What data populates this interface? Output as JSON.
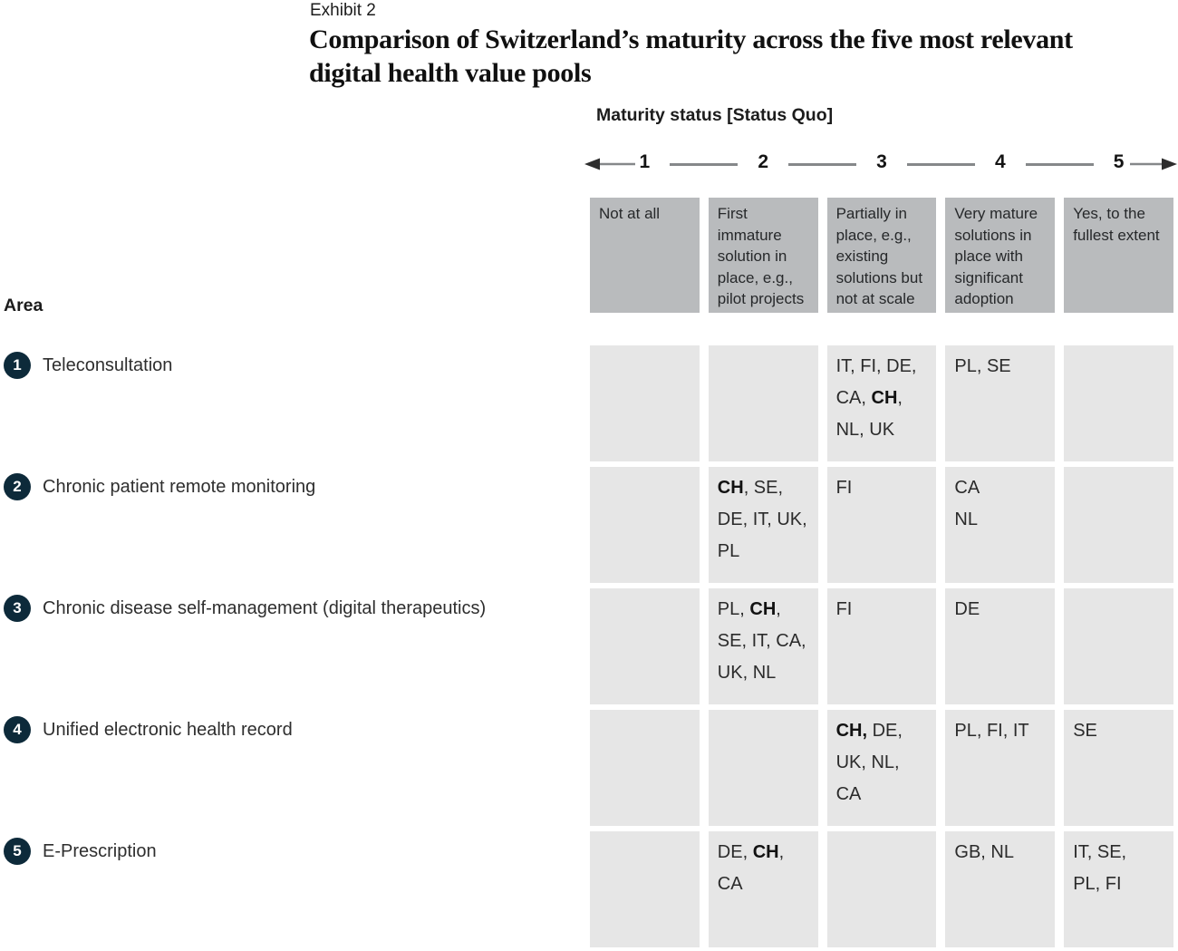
{
  "header": {
    "exhibit_label": "Exhibit 2",
    "title_lines": [
      "Comparison of Switzerland’s maturity across the five most relevant",
      "digital health value pools"
    ]
  },
  "matrix": {
    "axis_title": "Maturity status [Status Quo]",
    "scale_numbers": [
      "1",
      "2",
      "3",
      "4",
      "5"
    ],
    "column_headers": [
      "Not at all",
      "First immature solution in place, e.g., pilot projects",
      "Partially in place, e.g., existing solutions but not at scale",
      "Very mature solutions in place with significant adoption",
      "Yes, to the fullest extent"
    ],
    "area_label": "Area",
    "rows": [
      {
        "number": "1",
        "label": "Teleconsultation",
        "cells": [
          [],
          [],
          [
            "IT, FI, DE,",
            "CA, **CH**,",
            "NL, UK"
          ],
          [
            "PL, SE"
          ],
          []
        ]
      },
      {
        "number": "2",
        "label": "Chronic patient remote monitoring",
        "cells": [
          [],
          [
            "**CH**, SE,",
            "DE, IT, UK,",
            "PL"
          ],
          [
            "FI"
          ],
          [
            "CA",
            "NL"
          ],
          []
        ]
      },
      {
        "number": "3",
        "label": "Chronic disease self-management (digital therapeutics)",
        "cells": [
          [],
          [
            "PL, **CH**,",
            "SE, IT, CA,",
            "UK, NL"
          ],
          [
            "FI"
          ],
          [
            "DE"
          ],
          []
        ]
      },
      {
        "number": "4",
        "label": "Unified electronic health record",
        "cells": [
          [],
          [],
          [
            "**CH,** DE,",
            "UK, NL,",
            "CA"
          ],
          [
            "PL, FI, IT"
          ],
          [
            "SE"
          ]
        ]
      },
      {
        "number": "5",
        "label": "E-Prescription",
        "cells": [
          [],
          [
            "DE, **CH**,",
            "CA"
          ],
          [],
          [
            "GB, NL"
          ],
          [
            "IT, SE,",
            "PL, FI"
          ]
        ]
      }
    ]
  },
  "colors": {
    "header_cell_bg": "#b9bbbd",
    "body_cell_bg": "#e6e6e6",
    "row_number_circle": "#0d2a3a",
    "scale_line": "#85888a",
    "arrowhead": "#2d2d2d",
    "text": "#1c1c1c"
  },
  "chart_data": {
    "type": "table",
    "title": "Comparison of Switzerland’s maturity across the five most relevant digital health value pools",
    "exhibit": "Exhibit 2",
    "x_axis": {
      "label": "Maturity status [Status Quo]",
      "scale": [
        1,
        2,
        3,
        4,
        5
      ],
      "level_descriptions": [
        "Not at all",
        "First immature solution in place, e.g., pilot projects",
        "Partially in place, e.g., existing solutions but not at scale",
        "Very mature solutions in place with significant adoption",
        "Yes, to the fullest extent"
      ]
    },
    "y_axis": {
      "label": "Area"
    },
    "highlighted_country": "CH",
    "values": [
      {
        "area": "Teleconsultation",
        "levels": {
          "3": [
            "IT",
            "FI",
            "DE",
            "CA",
            "CH",
            "NL",
            "UK"
          ],
          "4": [
            "PL",
            "SE"
          ]
        }
      },
      {
        "area": "Chronic patient remote monitoring",
        "levels": {
          "2": [
            "CH",
            "SE",
            "DE",
            "IT",
            "UK",
            "PL"
          ],
          "3": [
            "FI"
          ],
          "4": [
            "CA",
            "NL"
          ]
        }
      },
      {
        "area": "Chronic disease self-management (digital therapeutics)",
        "levels": {
          "2": [
            "PL",
            "CH",
            "SE",
            "IT",
            "CA",
            "UK",
            "NL"
          ],
          "3": [
            "FI"
          ],
          "4": [
            "DE"
          ]
        }
      },
      {
        "area": "Unified electronic health record",
        "levels": {
          "3": [
            "CH",
            "DE",
            "UK",
            "NL",
            "CA"
          ],
          "4": [
            "PL",
            "FI",
            "IT"
          ],
          "5": [
            "SE"
          ]
        }
      },
      {
        "area": "E-Prescription",
        "levels": {
          "2": [
            "DE",
            "CH",
            "CA"
          ],
          "4": [
            "GB",
            "NL"
          ],
          "5": [
            "IT",
            "SE",
            "PL",
            "FI"
          ]
        }
      }
    ]
  }
}
